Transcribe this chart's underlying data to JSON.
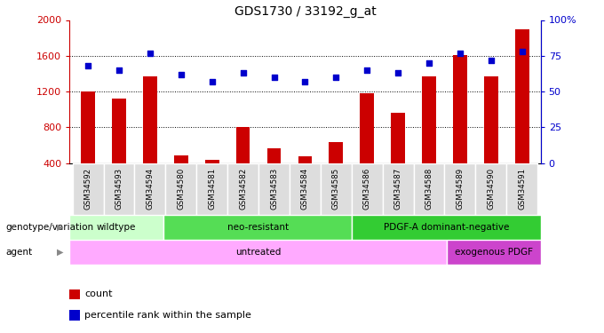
{
  "title": "GDS1730 / 33192_g_at",
  "samples": [
    "GSM34592",
    "GSM34593",
    "GSM34594",
    "GSM34580",
    "GSM34581",
    "GSM34582",
    "GSM34583",
    "GSM34584",
    "GSM34585",
    "GSM34586",
    "GSM34587",
    "GSM34588",
    "GSM34589",
    "GSM34590",
    "GSM34591"
  ],
  "counts": [
    1205,
    1120,
    1370,
    490,
    440,
    800,
    570,
    480,
    640,
    1180,
    960,
    1365,
    1610,
    1370,
    1900
  ],
  "percentiles": [
    68,
    65,
    77,
    62,
    57,
    63,
    60,
    57,
    60,
    65,
    63,
    70,
    77,
    72,
    78
  ],
  "ylim_left": [
    400,
    2000
  ],
  "ylim_right": [
    0,
    100
  ],
  "yticks_left": [
    400,
    800,
    1200,
    1600,
    2000
  ],
  "yticks_right": [
    0,
    25,
    50,
    75,
    100
  ],
  "bar_color": "#cc0000",
  "dot_color": "#0000cc",
  "groups": {
    "genotype": [
      {
        "label": "wildtype",
        "start": 0,
        "end": 3,
        "color": "#ccffcc"
      },
      {
        "label": "neo-resistant",
        "start": 3,
        "end": 9,
        "color": "#55dd55"
      },
      {
        "label": "PDGF-A dominant-negative",
        "start": 9,
        "end": 15,
        "color": "#33cc33"
      }
    ],
    "agent": [
      {
        "label": "untreated",
        "start": 0,
        "end": 12,
        "color": "#ffaaff"
      },
      {
        "label": "exogenous PDGF",
        "start": 12,
        "end": 15,
        "color": "#cc44cc"
      }
    ]
  },
  "legend_items": [
    {
      "label": "count",
      "color": "#cc0000"
    },
    {
      "label": "percentile rank within the sample",
      "color": "#0000cc"
    }
  ],
  "bg_color": "#ffffff",
  "left_label_color": "#cc0000",
  "right_label_color": "#0000cc",
  "row_label_genotype": "genotype/variation",
  "row_label_agent": "agent"
}
